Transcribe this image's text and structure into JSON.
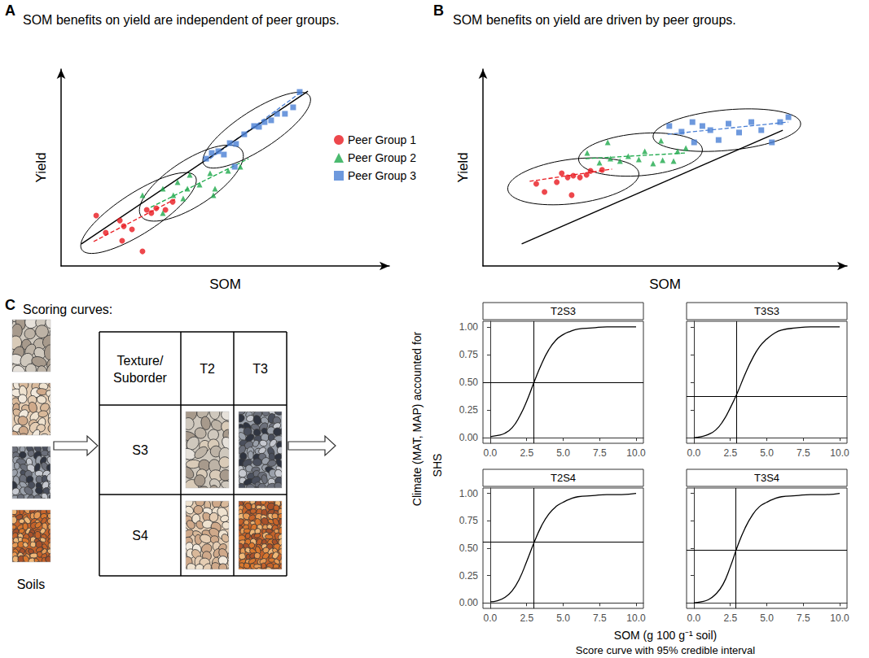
{
  "chart_data": [
    {
      "type": "scatter",
      "label": "A",
      "title": "SOM benefits on yield are independent of peer groups.",
      "xlabel": "SOM",
      "ylabel": "Yield",
      "xlim": [
        0,
        10
      ],
      "ylim": [
        0,
        10
      ],
      "tick_labels": false,
      "grid": false,
      "legend": "right",
      "overall_fit": {
        "x": [
          0.62,
          7.52
        ],
        "y": [
          1.12,
          8.88
        ]
      },
      "series": [
        {
          "name": "Peer Group 1",
          "color": "#e8191f",
          "marker": "circle",
          "x": [
            1.07,
            1.36,
            1.79,
            1.91,
            2.16,
            2.48,
            2.61,
            2.75,
            2.9,
            3.18,
            3.4,
            1.86
          ],
          "y": [
            2.56,
            1.69,
            2.31,
            2.02,
            1.86,
            0.74,
            2.85,
            2.69,
            2.93,
            2.85,
            3.26,
            1.28
          ],
          "fit": {
            "x": [
              0.99,
              3.47
            ],
            "y": [
              1.24,
              3.39
            ]
          },
          "ellipse": {
            "center": [
              2.36,
              2.69
            ],
            "major_end": [
              4.09,
              4.55
            ],
            "minor_end": [
              2.69,
              1.82
            ]
          }
        },
        {
          "name": "Peer Group 2",
          "color": "#1ea94b",
          "marker": "triangle",
          "x": [
            3.1,
            3.42,
            3.55,
            3.92,
            3.85,
            4.22,
            4.54,
            4.64,
            2.48,
            3.1,
            3.72,
            5.09,
            5.46,
            4.69
          ],
          "y": [
            3.93,
            3.6,
            4.26,
            4.63,
            3.93,
            4.13,
            4.71,
            3.6,
            3.6,
            2.69,
            3.43,
            4.83,
            5.04,
            3.93
          ],
          "fit": {
            "x": [
              2.73,
              5.71
            ],
            "y": [
              2.98,
              5.45
            ]
          },
          "ellipse": {
            "center": [
              3.97,
              4.21
            ],
            "major_end": [
              5.51,
              5.87
            ],
            "minor_end": [
              4.34,
              3.22
            ]
          }
        },
        {
          "name": "Peer Group 3",
          "color": "#4a7fd4",
          "marker": "square",
          "x": [
            4.42,
            4.59,
            4.79,
            4.96,
            5.14,
            5.33,
            5.58,
            5.88,
            6.03,
            6.2,
            6.4,
            6.58,
            6.82,
            7.07,
            7.27,
            5.29
          ],
          "y": [
            5.45,
            5.74,
            5.83,
            5.66,
            6.24,
            6.2,
            6.69,
            7.11,
            7.07,
            7.31,
            7.4,
            7.73,
            7.73,
            8.06,
            8.84,
            5.04
          ],
          "fit": {
            "x": [
              4.54,
              7.32
            ],
            "y": [
              5.45,
              8.84
            ]
          },
          "ellipse": {
            "center": [
              5.96,
              6.9
            ],
            "major_end": [
              7.57,
              8.64
            ],
            "minor_end": [
              6.28,
              6.07
            ]
          }
        }
      ]
    },
    {
      "type": "scatter",
      "label": "B",
      "title": "SOM benefits on yield are driven by peer groups.",
      "xlabel": "SOM",
      "ylabel": "Yield",
      "xlim": [
        0,
        11
      ],
      "ylim": [
        0,
        10
      ],
      "tick_labels": false,
      "grid": false,
      "overall_fit": {
        "x": [
          1.17,
          9.06
        ],
        "y": [
          1.12,
          6.9
        ]
      },
      "series": [
        {
          "color": "#e8191f",
          "marker": "circle",
          "x": [
            1.61,
            1.86,
            2.23,
            2.38,
            2.56,
            2.73,
            2.93,
            3.13,
            3.25,
            2.68,
            3.6
          ],
          "y": [
            4.17,
            3.76,
            4.26,
            4.71,
            4.5,
            4.59,
            4.5,
            4.63,
            4.83,
            3.6,
            4.88
          ],
          "fit": {
            "x": [
              1.41,
              3.9
            ],
            "y": [
              4.3,
              4.92
            ]
          },
          "ellipse": {
            "center": [
              2.73,
              4.3
            ],
            "major_end": [
              4.71,
              4.71
            ],
            "minor_end": [
              2.8,
              3.18
            ]
          }
        },
        {
          "color": "#1ea94b",
          "marker": "triangle",
          "x": [
            3.15,
            3.52,
            3.85,
            4.14,
            4.39,
            4.71,
            4.89,
            5.14,
            5.43,
            5.76,
            5.88,
            6.13,
            3.77,
            5.38
          ],
          "y": [
            5.74,
            5.25,
            5.45,
            5.33,
            5.58,
            5.41,
            5.83,
            5.21,
            5.37,
            5.33,
            5.83,
            5.99,
            6.28,
            6.36
          ],
          "fit": {
            "x": [
              3.1,
              6.13
            ],
            "y": [
              5.45,
              5.74
            ]
          },
          "ellipse": {
            "center": [
              4.76,
              5.66
            ],
            "major_end": [
              6.63,
              5.91
            ],
            "minor_end": [
              4.79,
              4.59
            ]
          }
        },
        {
          "color": "#4a7fd4",
          "marker": "square",
          "x": [
            5.63,
            6.0,
            6.33,
            6.63,
            6.87,
            7.12,
            7.42,
            7.74,
            8.11,
            8.41,
            8.73,
            8.98,
            9.23,
            6.38
          ],
          "y": [
            7.11,
            6.82,
            7.31,
            7.11,
            6.9,
            6.4,
            7.23,
            6.78,
            7.31,
            6.9,
            6.28,
            7.31,
            7.56,
            6.28
          ],
          "fit": {
            "x": [
              5.58,
              9.23
            ],
            "y": [
              6.69,
              7.31
            ]
          },
          "ellipse": {
            "center": [
              7.37,
              6.9
            ],
            "major_end": [
              9.6,
              7.23
            ],
            "minor_end": [
              7.39,
              5.87
            ]
          }
        }
      ]
    },
    {
      "type": "line",
      "title": "T2S3",
      "color": "#000000",
      "grid": false,
      "x": [
        0,
        0.5,
        1,
        1.5,
        2,
        2.5,
        3,
        3.5,
        4,
        4.5,
        5,
        5.5,
        6,
        7,
        8,
        9,
        10
      ],
      "values": [
        0.01,
        0.02,
        0.04,
        0.09,
        0.19,
        0.33,
        0.5,
        0.66,
        0.79,
        0.88,
        0.93,
        0.96,
        0.98,
        0.99,
        1.0,
        1.0,
        1.0
      ],
      "ref_x": 3.0,
      "ref_y": 0.5,
      "xlim": [
        -0.5,
        10.5
      ],
      "ylim": [
        -0.05,
        1.05
      ],
      "xticks": [
        {
          "value": 0,
          "label": "0.0"
        },
        {
          "value": 2.5,
          "label": "2.5"
        },
        {
          "value": 5,
          "label": "5.0"
        },
        {
          "value": 7.5,
          "label": "7.5"
        },
        {
          "value": 10,
          "label": "10.0"
        }
      ],
      "yticks": [
        {
          "value": 0,
          "label": "0.00"
        },
        {
          "value": 0.25,
          "label": "0.25"
        },
        {
          "value": 0.5,
          "label": "0.50"
        },
        {
          "value": 0.75,
          "label": "0.75"
        },
        {
          "value": 1,
          "label": "1.00"
        }
      ]
    },
    {
      "type": "line",
      "title": "T3S3",
      "color": "#000000",
      "grid": false,
      "tick_labels": "x",
      "x": [
        0,
        0.5,
        1,
        1.5,
        2,
        2.5,
        3,
        3.5,
        4,
        4.5,
        5,
        5.5,
        6,
        7,
        8,
        9,
        10
      ],
      "values": [
        0.0,
        0.01,
        0.03,
        0.07,
        0.15,
        0.27,
        0.41,
        0.57,
        0.71,
        0.82,
        0.89,
        0.94,
        0.97,
        0.99,
        1.0,
        1.0,
        1.0
      ],
      "ref_x": 2.9,
      "ref_y": 0.37,
      "xlim": [
        -0.5,
        10.5
      ],
      "ylim": [
        -0.05,
        1.05
      ],
      "xticks": [
        {
          "value": 0,
          "label": "0.0"
        },
        {
          "value": 2.5,
          "label": "2.5"
        },
        {
          "value": 5,
          "label": "5.0"
        },
        {
          "value": 7.5,
          "label": "7.5"
        },
        {
          "value": 10,
          "label": "10.0"
        }
      ],
      "yticks": [
        {
          "value": 0,
          "label": "0.00"
        },
        {
          "value": 0.25,
          "label": "0.25"
        },
        {
          "value": 0.5,
          "label": "0.50"
        },
        {
          "value": 0.75,
          "label": "0.75"
        },
        {
          "value": 1,
          "label": "1.00"
        }
      ]
    },
    {
      "type": "line",
      "title": "T2S4",
      "color": "#000000",
      "grid": false,
      "x": [
        0,
        0.5,
        1,
        1.5,
        2,
        2.5,
        3,
        3.5,
        4,
        4.5,
        5,
        5.5,
        6,
        7,
        8,
        9,
        10
      ],
      "values": [
        0.01,
        0.02,
        0.05,
        0.11,
        0.22,
        0.38,
        0.55,
        0.7,
        0.81,
        0.88,
        0.92,
        0.95,
        0.97,
        0.98,
        0.99,
        0.99,
        1.0
      ],
      "ref_x": 3.0,
      "ref_y": 0.56,
      "xlim": [
        -0.5,
        10.5
      ],
      "ylim": [
        -0.05,
        1.05
      ],
      "xticks": [
        {
          "value": 0,
          "label": "0.0"
        },
        {
          "value": 2.5,
          "label": "2.5"
        },
        {
          "value": 5,
          "label": "5.0"
        },
        {
          "value": 7.5,
          "label": "7.5"
        },
        {
          "value": 10,
          "label": "10.0"
        }
      ],
      "yticks": [
        {
          "value": 0,
          "label": "0.00"
        },
        {
          "value": 0.25,
          "label": "0.25"
        },
        {
          "value": 0.5,
          "label": "0.50"
        },
        {
          "value": 0.75,
          "label": "0.75"
        },
        {
          "value": 1,
          "label": "1.00"
        }
      ]
    },
    {
      "type": "line",
      "title": "T3S4",
      "color": "#000000",
      "grid": false,
      "tick_labels": "x",
      "x": [
        0,
        0.5,
        1,
        1.5,
        2,
        2.5,
        3,
        3.5,
        4,
        4.5,
        5,
        5.5,
        6,
        7,
        8,
        9,
        10
      ],
      "values": [
        0.0,
        0.01,
        0.03,
        0.08,
        0.17,
        0.33,
        0.52,
        0.68,
        0.8,
        0.88,
        0.92,
        0.95,
        0.97,
        0.98,
        0.99,
        0.99,
        1.0
      ],
      "ref_x": 2.85,
      "ref_y": 0.48,
      "xlim": [
        -0.5,
        10.5
      ],
      "ylim": [
        -0.05,
        1.05
      ],
      "xticks": [
        {
          "value": 0,
          "label": "0.0"
        },
        {
          "value": 2.5,
          "label": "2.5"
        },
        {
          "value": 5,
          "label": "5.0"
        },
        {
          "value": 7.5,
          "label": "7.5"
        },
        {
          "value": 10,
          "label": "10.0"
        }
      ],
      "yticks": [
        {
          "value": 0,
          "label": "0.00"
        },
        {
          "value": 0.25,
          "label": "0.25"
        },
        {
          "value": 0.5,
          "label": "0.50"
        },
        {
          "value": 0.75,
          "label": "0.75"
        },
        {
          "value": 1,
          "label": "1.00"
        }
      ]
    }
  ],
  "scoring_curves": {
    "label": "C",
    "heading": "Scoring curves:",
    "y_note": "Climate (MAT, MAP) accounted for",
    "y_title": "SHS",
    "x_title": "SOM (g 100 g⁻¹ soil)",
    "caption": "Score curve with 95% credible interval"
  },
  "soil_table": {
    "header": [
      "Texture/Suborder",
      "T2",
      "T3"
    ],
    "rows": [
      "S3",
      "S4"
    ]
  },
  "soils_label": "Soils"
}
